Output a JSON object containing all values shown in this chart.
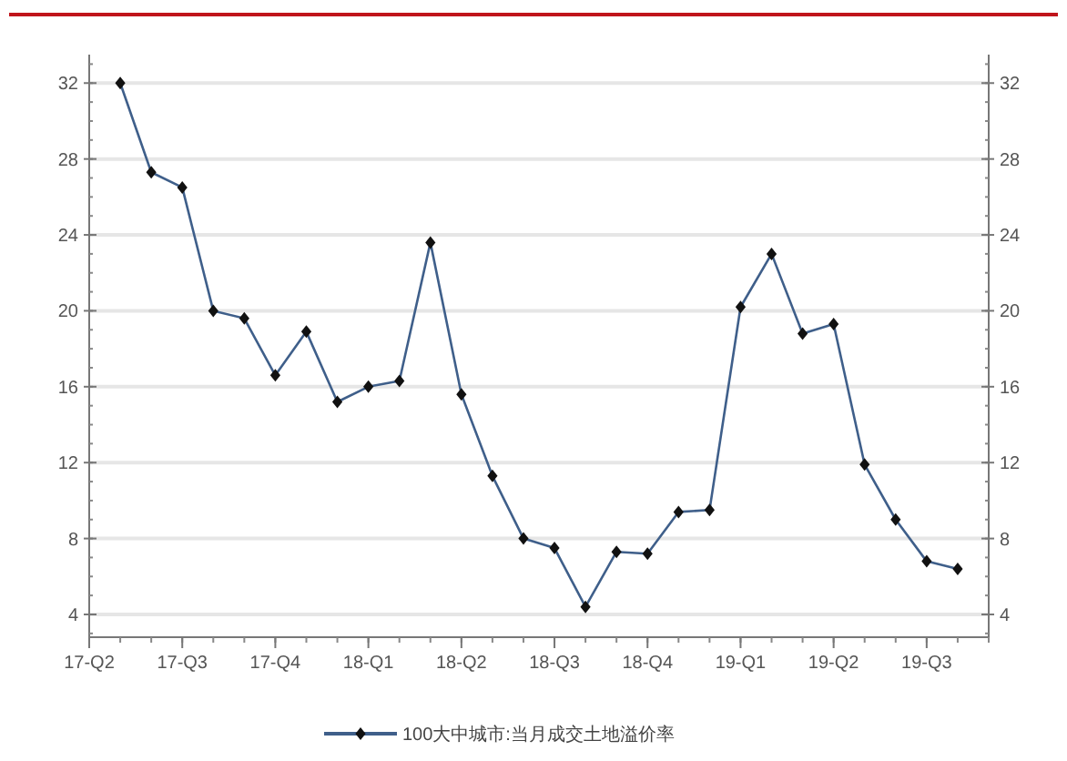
{
  "chart_data": {
    "type": "line",
    "categories": [
      "17-Q2",
      null,
      null,
      "17-Q3",
      null,
      null,
      "17-Q4",
      null,
      null,
      "18-Q1",
      null,
      null,
      "18-Q2",
      null,
      null,
      "18-Q3",
      null,
      null,
      "18-Q4",
      null,
      null,
      "19-Q1",
      null,
      null,
      "19-Q2",
      null,
      null,
      "19-Q3",
      null
    ],
    "series": [
      {
        "name": "100大中城市:当月成交土地溢价率",
        "color": "#3f5f8a",
        "values": [
          null,
          32,
          27.3,
          26.5,
          20.0,
          19.6,
          16.6,
          18.9,
          15.2,
          16.0,
          16.3,
          23.6,
          15.6,
          11.3,
          8.0,
          7.5,
          4.4,
          7.3,
          7.2,
          9.4,
          9.5,
          20.2,
          23.0,
          18.8,
          19.3,
          11.9,
          9.0,
          6.8,
          6.4
        ]
      }
    ],
    "ylim": [
      2.8,
      33.5
    ],
    "yticks": [
      4,
      8,
      12,
      16,
      20,
      24,
      28,
      32
    ],
    "y2lim": [
      2.8,
      33.5
    ],
    "y2ticks": [
      4,
      8,
      12,
      16,
      20,
      24,
      28,
      32
    ],
    "grid": "y",
    "legend": "bottom",
    "marker": "diamond",
    "line_style": "solid"
  }
}
